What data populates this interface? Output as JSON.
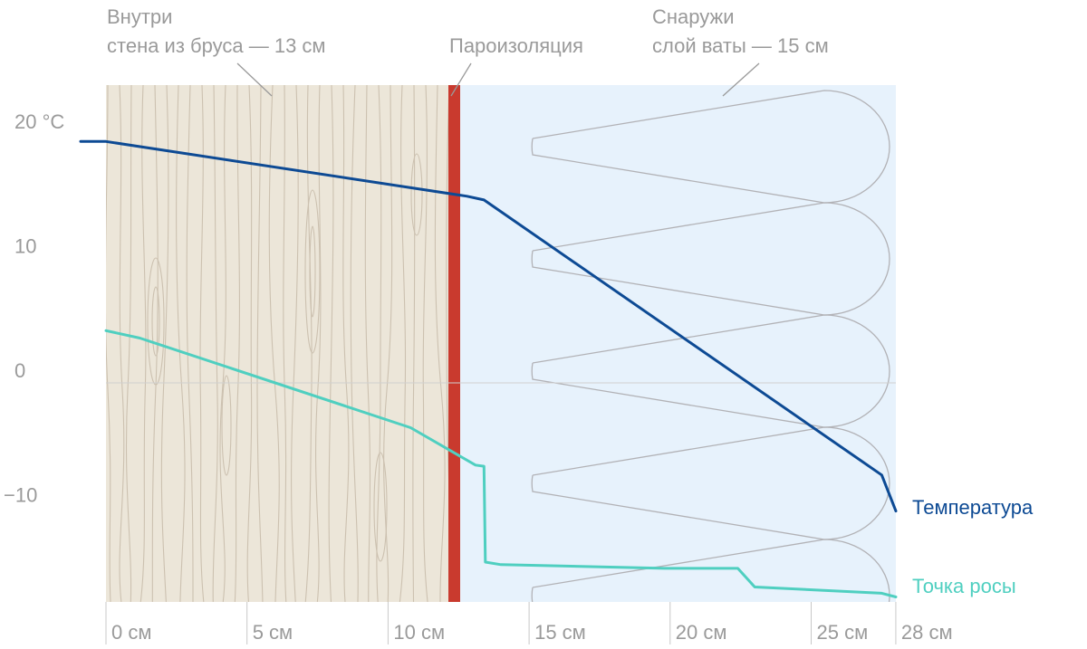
{
  "labels": {
    "inside_title": "Внутри",
    "inside_sub": "стена из бруса — 13 см",
    "barrier": "Пароизоляция",
    "outside_title": "Снаружи",
    "outside_sub": "слой ваты — 15 см"
  },
  "colors": {
    "wood": "#ece6d9",
    "insulation": "#e7f2fc",
    "barrier": "#c93a2e",
    "temperature": "#0d4a94",
    "dew_point": "#4fcfc0"
  },
  "chart_data": {
    "type": "line",
    "x_unit": "см",
    "y_unit": "°C",
    "xlim": [
      0,
      28
    ],
    "ylim": [
      -18,
      24
    ],
    "x_ticks": [
      {
        "value": 0,
        "label": "0 см"
      },
      {
        "value": 5,
        "label": "5 см"
      },
      {
        "value": 10,
        "label": "10 см"
      },
      {
        "value": 15,
        "label": "15 см"
      },
      {
        "value": 20,
        "label": "20 см"
      },
      {
        "value": 25,
        "label": "25 см"
      },
      {
        "value": 28,
        "label": "28 см"
      }
    ],
    "y_ticks": [
      {
        "value": 20,
        "label": "20 °C"
      },
      {
        "value": 10,
        "label": "10"
      },
      {
        "value": 0,
        "label": "0"
      },
      {
        "value": -10,
        "label": "−10"
      }
    ],
    "regions": [
      {
        "name": "wood",
        "from": 0,
        "to": 13
      },
      {
        "name": "barrier",
        "from": 13,
        "to": 13.4
      },
      {
        "name": "insulation",
        "from": 13.4,
        "to": 28
      }
    ],
    "series": [
      {
        "name": "Температура",
        "points": [
          [
            -1,
            19.4
          ],
          [
            0,
            19.4
          ],
          [
            12.8,
            15.0
          ],
          [
            13.4,
            14.7
          ],
          [
            27.5,
            -7.4
          ],
          [
            31,
            -10.3
          ]
        ]
      },
      {
        "name": "Точка росы",
        "points": [
          [
            0,
            4.2
          ],
          [
            1.2,
            3.6
          ],
          [
            10.8,
            -3.6
          ],
          [
            13.1,
            -6.6
          ],
          [
            13.4,
            -6.7
          ],
          [
            13.45,
            -14.4
          ],
          [
            14.0,
            -14.6
          ],
          [
            19.8,
            -14.9
          ],
          [
            22.4,
            -14.9
          ],
          [
            23.0,
            -16.4
          ],
          [
            27.5,
            -16.9
          ],
          [
            31,
            -17.2
          ]
        ]
      }
    ]
  }
}
